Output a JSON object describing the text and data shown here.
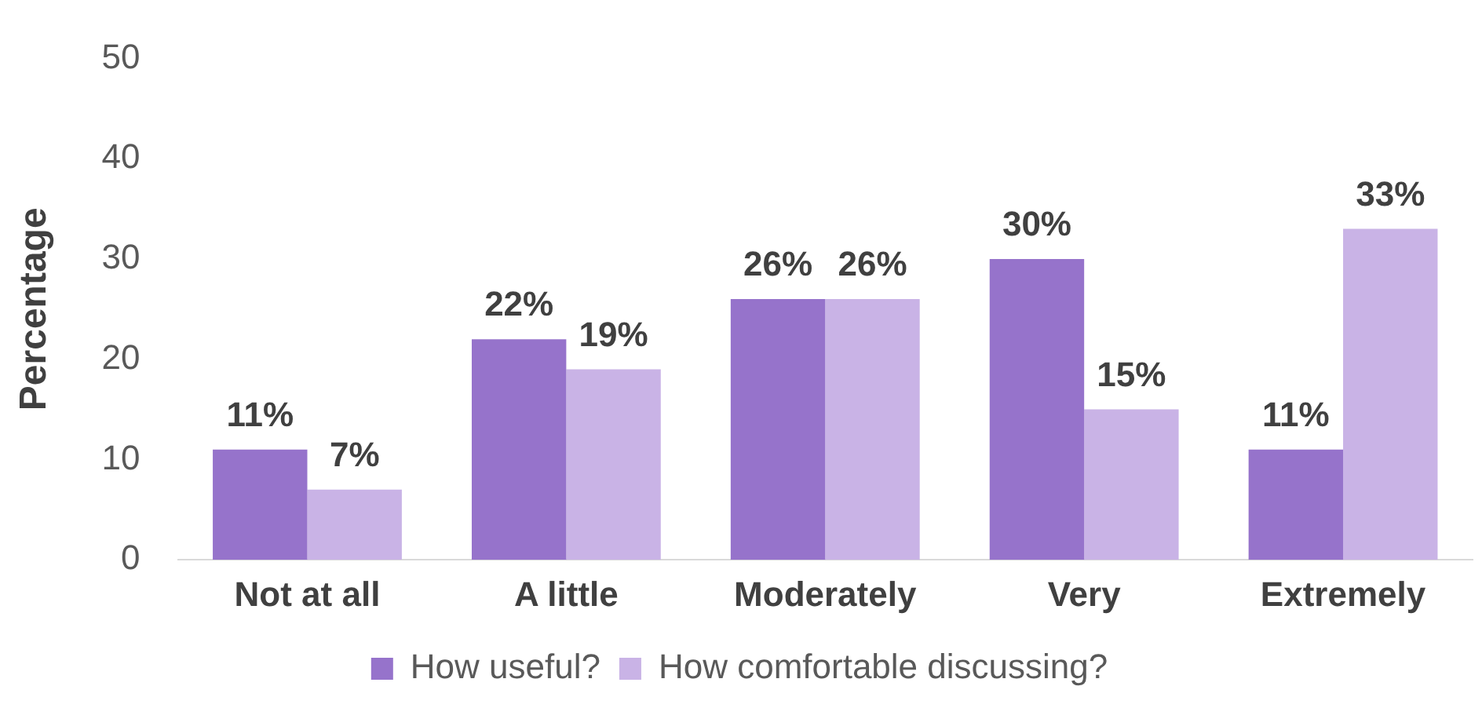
{
  "chart_data": {
    "type": "bar",
    "ylabel": "Percentage",
    "categories": [
      "Not at all",
      "A little",
      "Moderately",
      "Very",
      "Extremely"
    ],
    "series": [
      {
        "name": "How useful?",
        "color": "#9673cb",
        "values": [
          11,
          22,
          26,
          30,
          11
        ],
        "value_labels": [
          "11%",
          "22%",
          "26%",
          "30%",
          "11%"
        ]
      },
      {
        "name": "How comfortable discussing?",
        "color": "#c9b3e6",
        "values": [
          7,
          19,
          26,
          15,
          33
        ],
        "value_labels": [
          "7%",
          "19%",
          "26%",
          "15%",
          "33%"
        ]
      }
    ],
    "ylim": [
      0,
      50
    ],
    "yticks": [
      0,
      10,
      20,
      30,
      40,
      50
    ],
    "grid": false,
    "legend": "bottom"
  }
}
